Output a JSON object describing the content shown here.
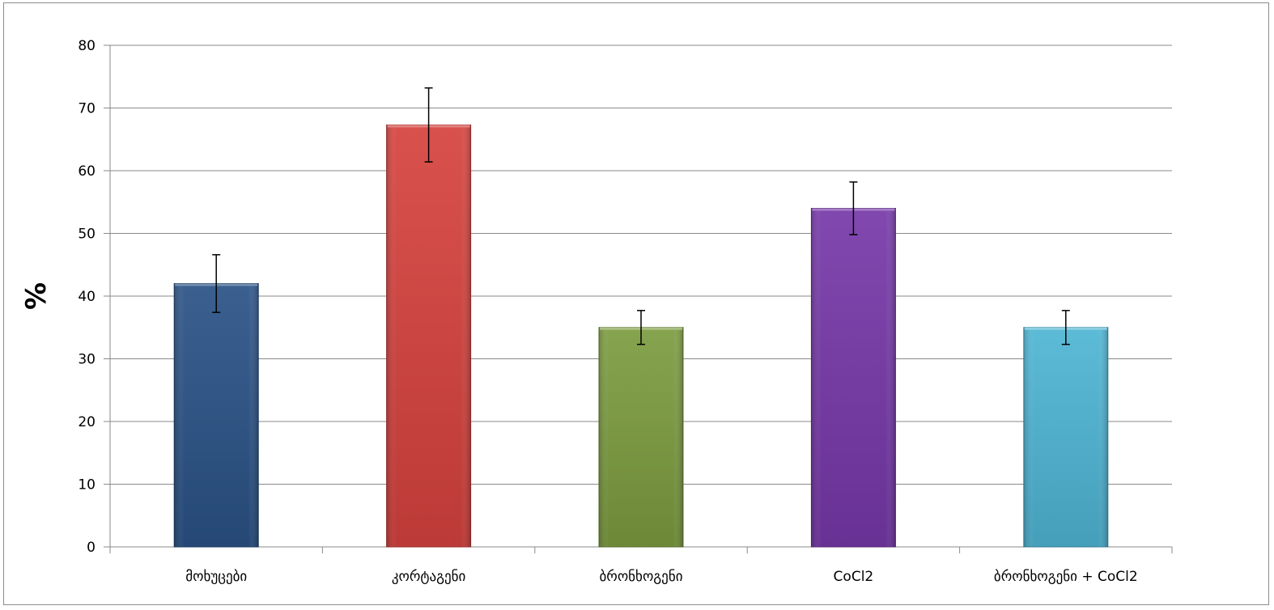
{
  "chart_data": {
    "type": "bar",
    "title": "",
    "xlabel": "",
    "ylabel": "%",
    "ylim": [
      0,
      80
    ],
    "yticks": [
      0,
      10,
      20,
      30,
      40,
      50,
      60,
      70,
      80
    ],
    "grid": true,
    "legend": "none",
    "categories": [
      "მოხუცები",
      "კორტაგენი",
      "ბრონხოგენი",
      "CoCl2",
      "ბრონხოგენი + CoCl2"
    ],
    "values": [
      42,
      67.3,
      35,
      54,
      35
    ],
    "error": [
      4.6,
      5.9,
      2.7,
      4.2,
      2.7
    ],
    "colors": [
      "#2a5286",
      "#d6423e",
      "#7c9c40",
      "#7638a8",
      "#4eb5d4"
    ]
  }
}
